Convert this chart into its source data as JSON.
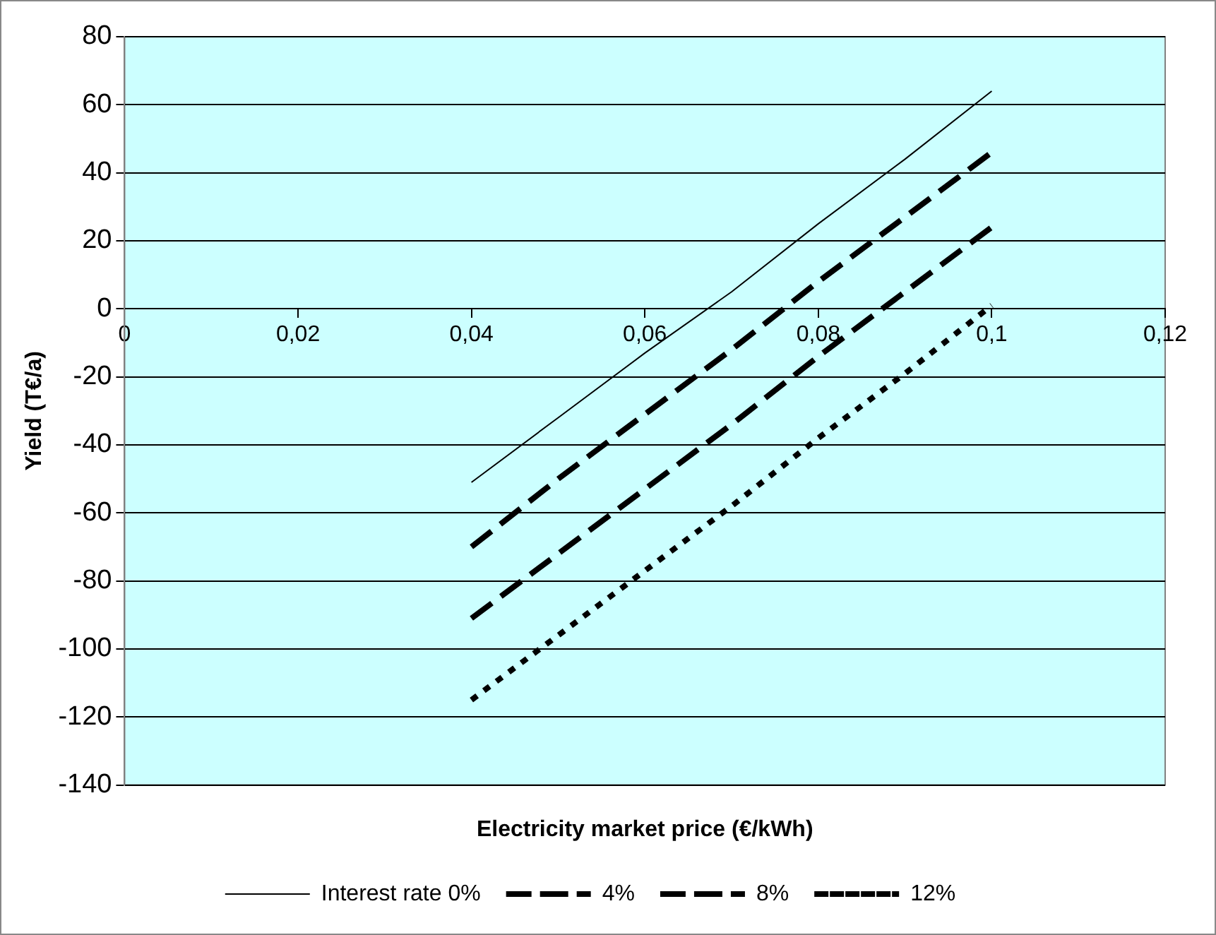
{
  "chart_data": {
    "type": "line",
    "xlabel": "Electricity market price (€/kWh)",
    "ylabel": "Yield (T€/a)",
    "x": [
      0.04,
      0.05,
      0.06,
      0.07,
      0.08,
      0.09,
      0.1
    ],
    "xlim": [
      0,
      0.12
    ],
    "xticks": [
      {
        "value": 0,
        "label": "0"
      },
      {
        "value": 0.02,
        "label": "0,02"
      },
      {
        "value": 0.04,
        "label": "0,04"
      },
      {
        "value": 0.06,
        "label": "0,06"
      },
      {
        "value": 0.08,
        "label": "0,08"
      },
      {
        "value": 0.1,
        "label": "0,1"
      },
      {
        "value": 0.12,
        "label": "0,12"
      }
    ],
    "ylim": [
      -140,
      80
    ],
    "yticks": [
      -140,
      -120,
      -100,
      -80,
      -60,
      -40,
      -20,
      0,
      20,
      40,
      60,
      80
    ],
    "grid": "y",
    "legend": "bottom",
    "marker": "none",
    "series": [
      {
        "name": "Interest rate 0%",
        "color": "#000000",
        "line_style": "solid",
        "values": [
          -51,
          -32,
          -13,
          5,
          25,
          44,
          64
        ]
      },
      {
        "name": "4%",
        "color": "#000000",
        "line_style": "dashed",
        "values": [
          -70,
          -50,
          -31,
          -12,
          8,
          27,
          46
        ]
      },
      {
        "name": "8%",
        "color": "#000000",
        "line_style": "dashed",
        "values": [
          -91,
          -72,
          -53,
          -34,
          -14,
          5,
          24
        ]
      },
      {
        "name": "12%",
        "color": "#000000",
        "line_style": "dotted",
        "values": [
          -115,
          -96,
          -77,
          -58,
          -38,
          -19,
          1
        ]
      }
    ]
  }
}
